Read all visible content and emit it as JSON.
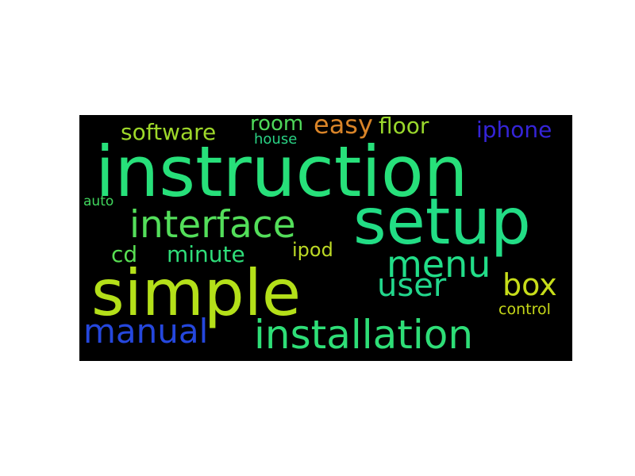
{
  "word_cloud": {
    "background": "#000000",
    "words": {
      "instruction": {
        "text": "instruction",
        "color": "#27e07a"
      },
      "setup": {
        "text": "setup",
        "color": "#22dd85"
      },
      "simple": {
        "text": "simple",
        "color": "#b4e019"
      },
      "installation": {
        "text": "installation",
        "color": "#2ede77"
      },
      "interface": {
        "text": "interface",
        "color": "#53de5a"
      },
      "menu": {
        "text": "menu",
        "color": "#22dd88"
      },
      "user": {
        "text": "user",
        "color": "#22d68c"
      },
      "manual": {
        "text": "manual",
        "color": "#2547dd"
      },
      "box": {
        "text": "box",
        "color": "#c7dd1a"
      },
      "easy": {
        "text": "easy",
        "color": "#d98428"
      },
      "cd": {
        "text": "cd",
        "color": "#58de52"
      },
      "minute": {
        "text": "minute",
        "color": "#2fdd79"
      },
      "software": {
        "text": "software",
        "color": "#9ed82a"
      },
      "iphone": {
        "text": "iphone",
        "color": "#3524d8"
      },
      "floor": {
        "text": "floor",
        "color": "#9ad82c"
      },
      "room": {
        "text": "room",
        "color": "#4fd85a"
      },
      "ipod": {
        "text": "ipod",
        "color": "#bcd925"
      },
      "house": {
        "text": "house",
        "color": "#2ad385"
      },
      "auto": {
        "text": "auto",
        "color": "#41d65d"
      },
      "control": {
        "text": "control",
        "color": "#c6d818"
      }
    }
  }
}
